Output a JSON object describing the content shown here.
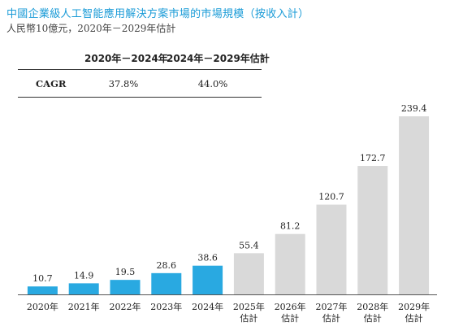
{
  "header": {
    "title": "中國企業級人工智能應用解決方案市場的市場規模（按收入計）",
    "subtitle": "人民幣10億元，2020年－2029年估計"
  },
  "cagr": {
    "col1": "2020年－2024年",
    "col2": "2024年－2029年估計",
    "label": "CAGR",
    "val1": "37.8%",
    "val2": "44.0%"
  },
  "colors": {
    "historical": "#29a9e1",
    "forecast": "#d9d9d9"
  },
  "chart_data": {
    "type": "bar",
    "categories": [
      "2020年",
      "2021年",
      "2022年",
      "2023年",
      "2024年",
      "2025年\n估計",
      "2026年\n估計",
      "2027年\n估計",
      "2028年\n估計",
      "2029年\n估計"
    ],
    "values": [
      10.7,
      14.9,
      19.5,
      28.6,
      38.6,
      55.4,
      81.2,
      120.7,
      172.7,
      239.4
    ],
    "value_labels": [
      "10.7",
      "14.9",
      "19.5",
      "28.6",
      "38.6",
      "55.4",
      "81.2",
      "120.7",
      "172.7",
      "239.4"
    ],
    "forecast": [
      false,
      false,
      false,
      false,
      false,
      true,
      true,
      true,
      true,
      true
    ],
    "ylim": [
      0,
      239.4
    ]
  }
}
